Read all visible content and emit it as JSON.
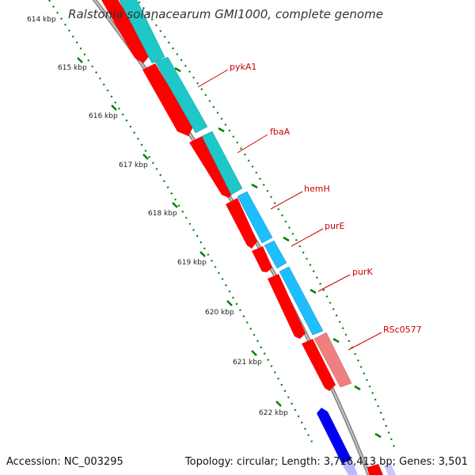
{
  "title": "Ralstonia solanacearum GMI1000, complete genome",
  "footer": {
    "accession": "Accession: NC_003295",
    "summary": "Topology: circular; Length: 3,716,413 bp; Genes: 3,501"
  },
  "ticks": [
    "614 kbp",
    "615 kbp",
    "616 kbp",
    "617 kbp",
    "618 kbp",
    "619 kbp",
    "620 kbp",
    "621 kbp",
    "622 kbp"
  ],
  "genes": [
    "pykA1",
    "fbaA",
    "hemH",
    "purE",
    "purK",
    "RSc0577"
  ],
  "colors": {
    "cds_forward": "#ff0000",
    "cds_reverse": "#0000ee",
    "cog_teal": "#1ec8c8",
    "cog_sky": "#1ebeff",
    "cog_pink": "#f08080",
    "backbone": "#8c8c8c",
    "tick_green": "#008000",
    "label_red": "#cc0000"
  }
}
